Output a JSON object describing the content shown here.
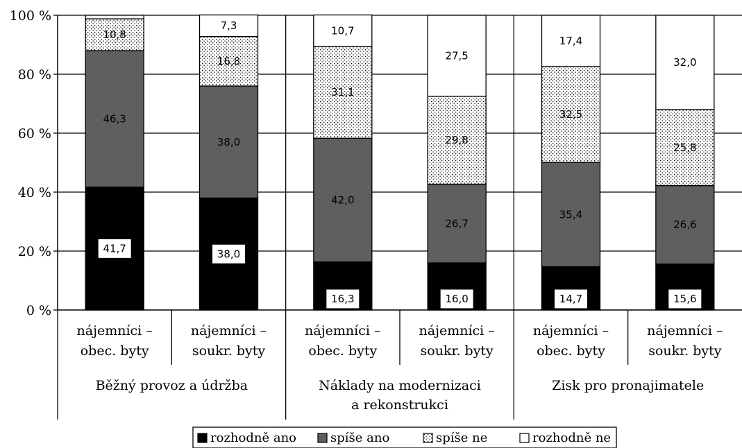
{
  "chart_data": {
    "type": "bar",
    "stacked": true,
    "ylim": [
      0,
      100
    ],
    "yticks": [
      "0 %",
      "20 %",
      "40 %",
      "60 %",
      "80 %",
      "100 %"
    ],
    "grid": true,
    "legend_position": "bottom",
    "categories": [
      "nájemníci – obec. byty",
      "nájemníci – soukr. byty",
      "nájemníci – obec. byty",
      "nájemníci – soukr. byty",
      "nájemníci – obec. byty",
      "nájemníci – soukr. byty"
    ],
    "category_lines": [
      [
        "nájemníci –",
        "obec. byty"
      ],
      [
        "nájemníci –",
        "soukr. byty"
      ],
      [
        "nájemníci –",
        "obec. byty"
      ],
      [
        "nájemníci –",
        "soukr. byty"
      ],
      [
        "nájemníci –",
        "obec. byty"
      ],
      [
        "nájemníci –",
        "soukr. byty"
      ]
    ],
    "groups": [
      {
        "lines": [
          "Běžný provoz a údržba"
        ],
        "indices": [
          0,
          1
        ]
      },
      {
        "lines": [
          "Náklady na modernizaci",
          "a rekonstrukci"
        ],
        "indices": [
          2,
          3
        ]
      },
      {
        "lines": [
          "Zisk pro pronajimatele"
        ],
        "indices": [
          4,
          5
        ]
      }
    ],
    "series": [
      {
        "name": "rozhodně ano",
        "color": "#000000",
        "pattern": "solid",
        "values": [
          41.7,
          38.0,
          16.3,
          16.0,
          14.7,
          15.6
        ],
        "labels": [
          "41,7",
          "38,0",
          "16,3",
          "16,0",
          "14,7",
          "15,6"
        ]
      },
      {
        "name": "spíše ano",
        "color": "#5f5f5f",
        "pattern": "solid",
        "values": [
          46.3,
          38.0,
          42.0,
          26.7,
          35.4,
          26.6
        ],
        "labels": [
          "46,3",
          "38,0",
          "42,0",
          "26,7",
          "35,4",
          "26,6"
        ]
      },
      {
        "name": "spíše ne",
        "color": "#ffffff",
        "pattern": "dots",
        "values": [
          10.8,
          16.8,
          31.1,
          29.8,
          32.5,
          25.8
        ],
        "labels": [
          "10,8",
          "16,8",
          "31,1",
          "29,8",
          "32,5",
          "25,8"
        ]
      },
      {
        "name": "rozhodně ne",
        "color": "#ffffff",
        "pattern": "solid",
        "values": [
          1.2,
          7.3,
          10.7,
          27.5,
          17.4,
          32.0
        ],
        "labels": [
          "",
          "7,3",
          "10,7",
          "27,5",
          "17,4",
          "32,0"
        ]
      }
    ]
  }
}
